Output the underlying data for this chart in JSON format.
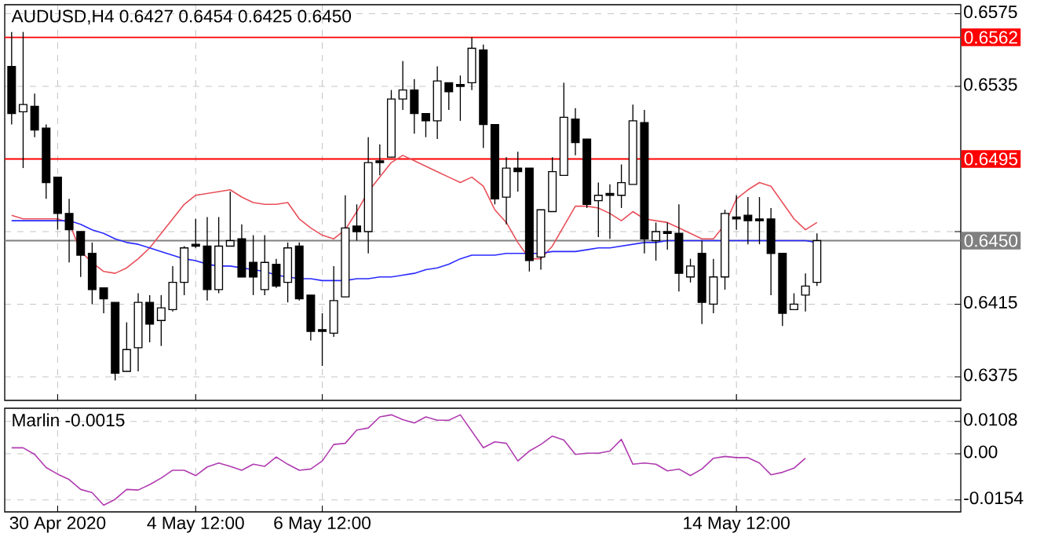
{
  "chart_data": [
    {
      "type": "candlestick",
      "title": "AUDUSD,H4 0.6427 0.6454 0.6425 0.6450",
      "categories": [
        null,
        null,
        null,
        null,
        null,
        null,
        null,
        null,
        null,
        null,
        null,
        null,
        null,
        null,
        null,
        null,
        null,
        null,
        null,
        null,
        null,
        null,
        null,
        null,
        null,
        null,
        null,
        null,
        null,
        null,
        null,
        null,
        null,
        null,
        null,
        null,
        null,
        null,
        null,
        null,
        null,
        null,
        null,
        null,
        null,
        null,
        null,
        null,
        null,
        null,
        null,
        null,
        null,
        null,
        null,
        null,
        null,
        null,
        null,
        null,
        null,
        null,
        null,
        null,
        null,
        null,
        null,
        null,
        null,
        null,
        null
      ],
      "ohlc": [
        [
          0.6546,
          0.6565,
          0.6514,
          0.652
        ],
        [
          0.6521,
          0.6565,
          0.649,
          0.6525
        ],
        [
          0.6524,
          0.6531,
          0.6507,
          0.6511
        ],
        [
          0.6512,
          0.6514,
          0.6473,
          0.6482
        ],
        [
          0.6485,
          0.6485,
          0.6456,
          0.6465
        ],
        [
          0.6465,
          0.6473,
          0.6438,
          0.6456
        ],
        [
          0.6455,
          0.6455,
          0.643,
          0.6442
        ],
        [
          0.6443,
          0.6449,
          0.6415,
          0.6423
        ],
        [
          0.6424,
          0.6424,
          0.641,
          0.6418
        ],
        [
          0.6416,
          0.6416,
          0.6373,
          0.6377
        ],
        [
          0.6378,
          0.6405,
          0.6378,
          0.639
        ],
        [
          0.6391,
          0.6421,
          0.6378,
          0.6416
        ],
        [
          0.6416,
          0.642,
          0.6394,
          0.6404
        ],
        [
          0.6406,
          0.642,
          0.6392,
          0.6413
        ],
        [
          0.6412,
          0.6436,
          0.6411,
          0.6427
        ],
        [
          0.6427,
          0.6447,
          0.642,
          0.6446
        ],
        [
          0.6448,
          0.6462,
          0.6446,
          0.6447
        ],
        [
          0.6447,
          0.6463,
          0.6417,
          0.6423
        ],
        [
          0.6423,
          0.6463,
          0.6421,
          0.6447
        ],
        [
          0.6447,
          0.6477,
          0.6447,
          0.645
        ],
        [
          0.6451,
          0.6459,
          0.643,
          0.643
        ],
        [
          0.6438,
          0.6453,
          0.642,
          0.643
        ],
        [
          0.6423,
          0.6453,
          0.642,
          0.6438
        ],
        [
          0.6437,
          0.644,
          0.6424,
          0.6425
        ],
        [
          0.6427,
          0.6449,
          0.6416,
          0.6446
        ],
        [
          0.6447,
          0.6449,
          0.6417,
          0.6418
        ],
        [
          0.642,
          0.642,
          0.6395,
          0.64
        ],
        [
          0.6401,
          0.641,
          0.6381,
          0.64
        ],
        [
          0.6399,
          0.6436,
          0.6397,
          0.6417
        ],
        [
          0.6419,
          0.6475,
          0.6419,
          0.6457
        ],
        [
          0.6458,
          0.647,
          0.645,
          0.6455
        ],
        [
          0.6455,
          0.6507,
          0.6443,
          0.6493
        ],
        [
          0.6494,
          0.6503,
          0.6486,
          0.6493
        ],
        [
          0.6496,
          0.6533,
          0.6496,
          0.6528
        ],
        [
          0.6528,
          0.6549,
          0.6522,
          0.6533
        ],
        [
          0.6533,
          0.6539,
          0.6509,
          0.652
        ],
        [
          0.652,
          0.652,
          0.6507,
          0.6516
        ],
        [
          0.6516,
          0.6546,
          0.6506,
          0.6538
        ],
        [
          0.6537,
          0.6537,
          0.6522,
          0.6532
        ],
        [
          0.6536,
          0.6541,
          0.6516,
          0.6535
        ],
        [
          0.6537,
          0.6562,
          0.6533,
          0.6556
        ],
        [
          0.6555,
          0.6558,
          0.6501,
          0.6514
        ],
        [
          0.6514,
          0.6514,
          0.647,
          0.6473
        ],
        [
          0.6474,
          0.6496,
          0.6459,
          0.649
        ],
        [
          0.649,
          0.6499,
          0.6477,
          0.6488
        ],
        [
          0.649,
          0.649,
          0.6433,
          0.6439
        ],
        [
          0.6441,
          0.6467,
          0.6434,
          0.6467
        ],
        [
          0.6466,
          0.6496,
          0.6466,
          0.6488
        ],
        [
          0.6486,
          0.6537,
          0.6486,
          0.6518
        ],
        [
          0.6517,
          0.6523,
          0.6497,
          0.6504
        ],
        [
          0.6506,
          0.6506,
          0.6468,
          0.647
        ],
        [
          0.6472,
          0.6482,
          0.6452,
          0.6475
        ],
        [
          0.6476,
          0.6481,
          0.6451,
          0.6475
        ],
        [
          0.6475,
          0.6492,
          0.6468,
          0.6482
        ],
        [
          0.6481,
          0.6525,
          0.6481,
          0.6516
        ],
        [
          0.6515,
          0.6522,
          0.6443,
          0.6451
        ],
        [
          0.645,
          0.646,
          0.6439,
          0.6455
        ],
        [
          0.6455,
          0.646,
          0.6445,
          0.6454
        ],
        [
          0.6454,
          0.647,
          0.6422,
          0.6432
        ],
        [
          0.643,
          0.644,
          0.6427,
          0.6436
        ],
        [
          0.6443,
          0.645,
          0.6404,
          0.6416
        ],
        [
          0.6415,
          0.644,
          0.641,
          0.643
        ],
        [
          0.643,
          0.6467,
          0.6423,
          0.6465
        ],
        [
          0.6463,
          0.6475,
          0.6456,
          0.6462
        ],
        [
          0.6464,
          0.6474,
          0.6448,
          0.6461
        ],
        [
          0.6462,
          0.6474,
          0.6448,
          0.6461
        ],
        [
          0.6462,
          0.6468,
          0.642,
          0.6443
        ],
        [
          0.6443,
          0.6443,
          0.6403,
          0.641
        ],
        [
          0.6412,
          0.6421,
          0.6412,
          0.6415
        ],
        [
          0.642,
          0.6432,
          0.6411,
          0.6425
        ],
        [
          0.6427,
          0.6454,
          0.6425,
          0.645
        ]
      ],
      "series": [
        {
          "type": "line",
          "color": "#e8505a",
          "values": [
            0.6464,
            0.6462,
            0.6462,
            0.6462,
            0.6462,
            0.646,
            0.6444,
            0.6438,
            0.6433,
            0.6432,
            0.6435,
            0.644,
            0.6446,
            0.6454,
            0.6462,
            0.647,
            0.6475,
            0.6476,
            0.6477,
            0.6478,
            0.6474,
            0.6471,
            0.647,
            0.647,
            0.6471,
            0.6462,
            0.6457,
            0.6453,
            0.6451,
            0.6456,
            0.6466,
            0.6477,
            0.6485,
            0.6493,
            0.6497,
            0.6494,
            0.6491,
            0.6488,
            0.6485,
            0.6482,
            0.6485,
            0.648,
            0.6467,
            0.646,
            0.6449,
            0.644,
            0.644,
            0.6447,
            0.6458,
            0.6469,
            0.6469,
            0.6468,
            0.6465,
            0.6461,
            0.6466,
            0.6462,
            0.6461,
            0.646,
            0.6457,
            0.6454,
            0.6451,
            0.6451,
            0.6459,
            0.6473,
            0.6478,
            0.6482,
            0.648,
            0.6471,
            0.6462,
            0.6456,
            0.646
          ]
        },
        {
          "type": "line",
          "color": "#2a2aff",
          "values": [
            0.6461,
            0.6461,
            0.6461,
            0.6461,
            0.6461,
            0.6461,
            0.6459,
            0.6456,
            0.6454,
            0.6451,
            0.6449,
            0.6448,
            0.6446,
            0.6444,
            0.6442,
            0.644,
            0.6439,
            0.6437,
            0.6436,
            0.6436,
            0.6435,
            0.6434,
            0.6433,
            0.6431,
            0.643,
            0.6429,
            0.6429,
            0.6428,
            0.6428,
            0.6428,
            0.6429,
            0.6429,
            0.643,
            0.643,
            0.6431,
            0.6432,
            0.6434,
            0.6435,
            0.6437,
            0.644,
            0.6442,
            0.6442,
            0.6442,
            0.6443,
            0.6443,
            0.6443,
            0.6443,
            0.6444,
            0.6444,
            0.6444,
            0.6445,
            0.6446,
            0.6446,
            0.6447,
            0.6448,
            0.6449,
            0.6449,
            0.645,
            0.645,
            0.645,
            0.645,
            0.645,
            0.645,
            0.645,
            0.645,
            0.645,
            0.645,
            0.645,
            0.645,
            0.645,
            0.6449
          ]
        }
      ],
      "ylim": [
        0.6362,
        0.658
      ],
      "yticks": [
        0.6375,
        0.6415,
        {
          "value": 0.6455,
          "label": null
        },
        {
          "value": 0.6495,
          "label": null
        },
        0.6535,
        0.6575
      ],
      "ref_lines": [
        {
          "axis": "y",
          "value": 0.6562,
          "label": "0.6562",
          "color": "#ff0000"
        },
        {
          "axis": "y",
          "value": 0.6495,
          "label": "0.6495",
          "color": "#ff0000"
        },
        {
          "axis": "y",
          "value": 0.645,
          "label": "0.6450",
          "color": "#808080"
        }
      ],
      "grid": true,
      "tick_labels": "y"
    },
    {
      "type": "line",
      "title": "Marlin -0.0015",
      "categories": [
        null,
        null,
        null,
        null,
        "30 Apr 2020",
        null,
        null,
        null,
        null,
        null,
        null,
        null,
        null,
        null,
        null,
        null,
        "4 May 12:00",
        null,
        null,
        null,
        null,
        null,
        null,
        null,
        null,
        null,
        null,
        "6 May 12:00",
        null,
        null,
        null,
        null,
        null,
        null,
        null,
        null,
        null,
        null,
        null,
        null,
        null,
        null,
        null,
        null,
        null,
        null,
        null,
        null,
        null,
        null,
        null,
        null,
        null,
        null,
        null,
        null,
        null,
        null,
        null,
        null,
        null,
        null,
        null,
        "14 May 12:00",
        null,
        null,
        null,
        null,
        null,
        null,
        null
      ],
      "series": [
        {
          "color": "#b03cb0",
          "values": [
            0.002,
            0.002,
            -0.0002,
            -0.0046,
            -0.0068,
            -0.0086,
            -0.0119,
            -0.013,
            -0.0172,
            -0.0152,
            -0.0119,
            -0.0121,
            -0.0103,
            -0.0081,
            -0.0055,
            -0.0055,
            -0.0073,
            -0.0044,
            -0.0031,
            -0.0042,
            -0.0055,
            -0.0035,
            -0.0042,
            -0.0011,
            -0.0035,
            -0.0055,
            -0.0051,
            -0.0024,
            0.0031,
            0.0035,
            0.0079,
            0.0086,
            0.0123,
            0.013,
            0.0114,
            0.0103,
            0.0123,
            0.0112,
            0.0112,
            0.013,
            0.0075,
            0.002,
            0.004,
            0.0035,
            -0.0024,
            0.0009,
            0.0031,
            0.0059,
            0.0046,
            -0.0002,
            0.0002,
            0.0002,
            0.0009,
            0.0048,
            -0.0035,
            -0.0031,
            -0.0035,
            -0.0057,
            -0.0051,
            -0.0073,
            -0.0051,
            -0.0015,
            -0.0009,
            -0.0013,
            -0.0013,
            -0.0031,
            -0.007,
            -0.0062,
            -0.0048,
            -0.0015,
            null
          ]
        }
      ],
      "ylim": [
        -0.0194,
        0.0152
      ],
      "yticks": [
        -0.0154,
        {
          "value": 0,
          "label": "0.00"
        },
        0.0108
      ],
      "grid": true
    }
  ]
}
